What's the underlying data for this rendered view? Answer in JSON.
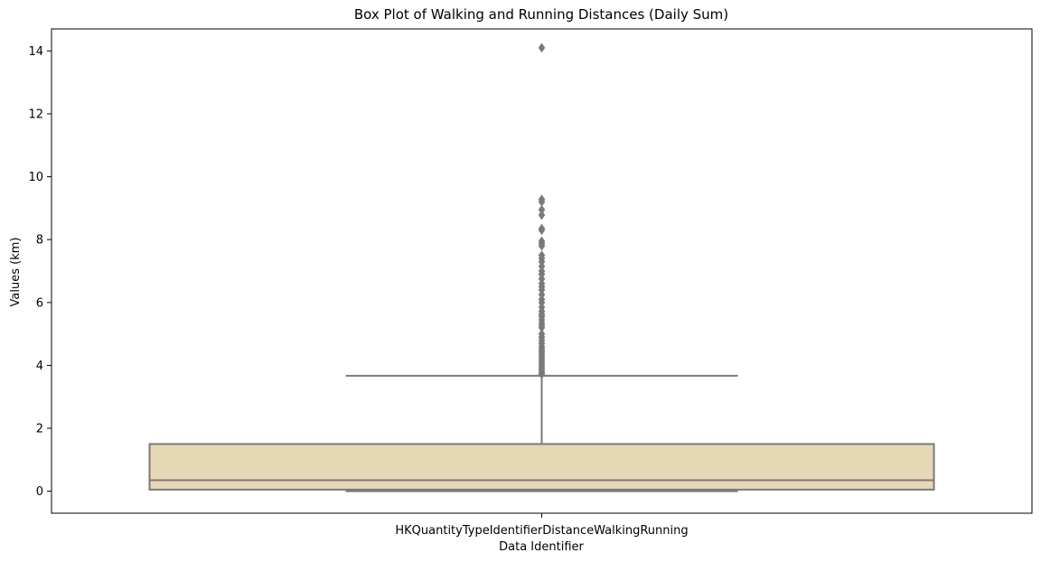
{
  "chart_data": {
    "type": "box",
    "title": "Box Plot of Walking and Running Distances (Daily Sum)",
    "xlabel": "Data Identifier",
    "ylabel": "Values (km)",
    "categories": [
      "HKQuantityTypeIdentifierDistanceWalkingRunning"
    ],
    "ylim": [
      -0.7,
      14.7
    ],
    "yticks": [
      0,
      2,
      4,
      6,
      8,
      10,
      12,
      14
    ],
    "grid": false,
    "box": {
      "whisker_low": 0.0,
      "q1": 0.05,
      "median": 0.35,
      "q3": 1.5,
      "whisker_high": 3.67
    },
    "outliers": [
      3.72,
      3.78,
      3.85,
      3.92,
      4.0,
      4.08,
      4.15,
      4.22,
      4.3,
      4.38,
      4.45,
      4.52,
      4.6,
      4.7,
      4.8,
      4.9,
      5.0,
      5.2,
      5.28,
      5.35,
      5.45,
      5.55,
      5.62,
      5.72,
      5.85,
      6.0,
      6.1,
      6.25,
      6.4,
      6.5,
      6.6,
      6.75,
      6.9,
      7.0,
      7.15,
      7.3,
      7.4,
      7.5,
      7.8,
      7.88,
      7.95,
      8.3,
      8.35,
      8.78,
      8.95,
      9.2,
      9.28,
      14.1
    ],
    "colors": {
      "box_fill": "#e6d8b5",
      "box_edge": "#7a7a7a",
      "outlier": "#7a7a7a",
      "axis": "#000000"
    }
  }
}
